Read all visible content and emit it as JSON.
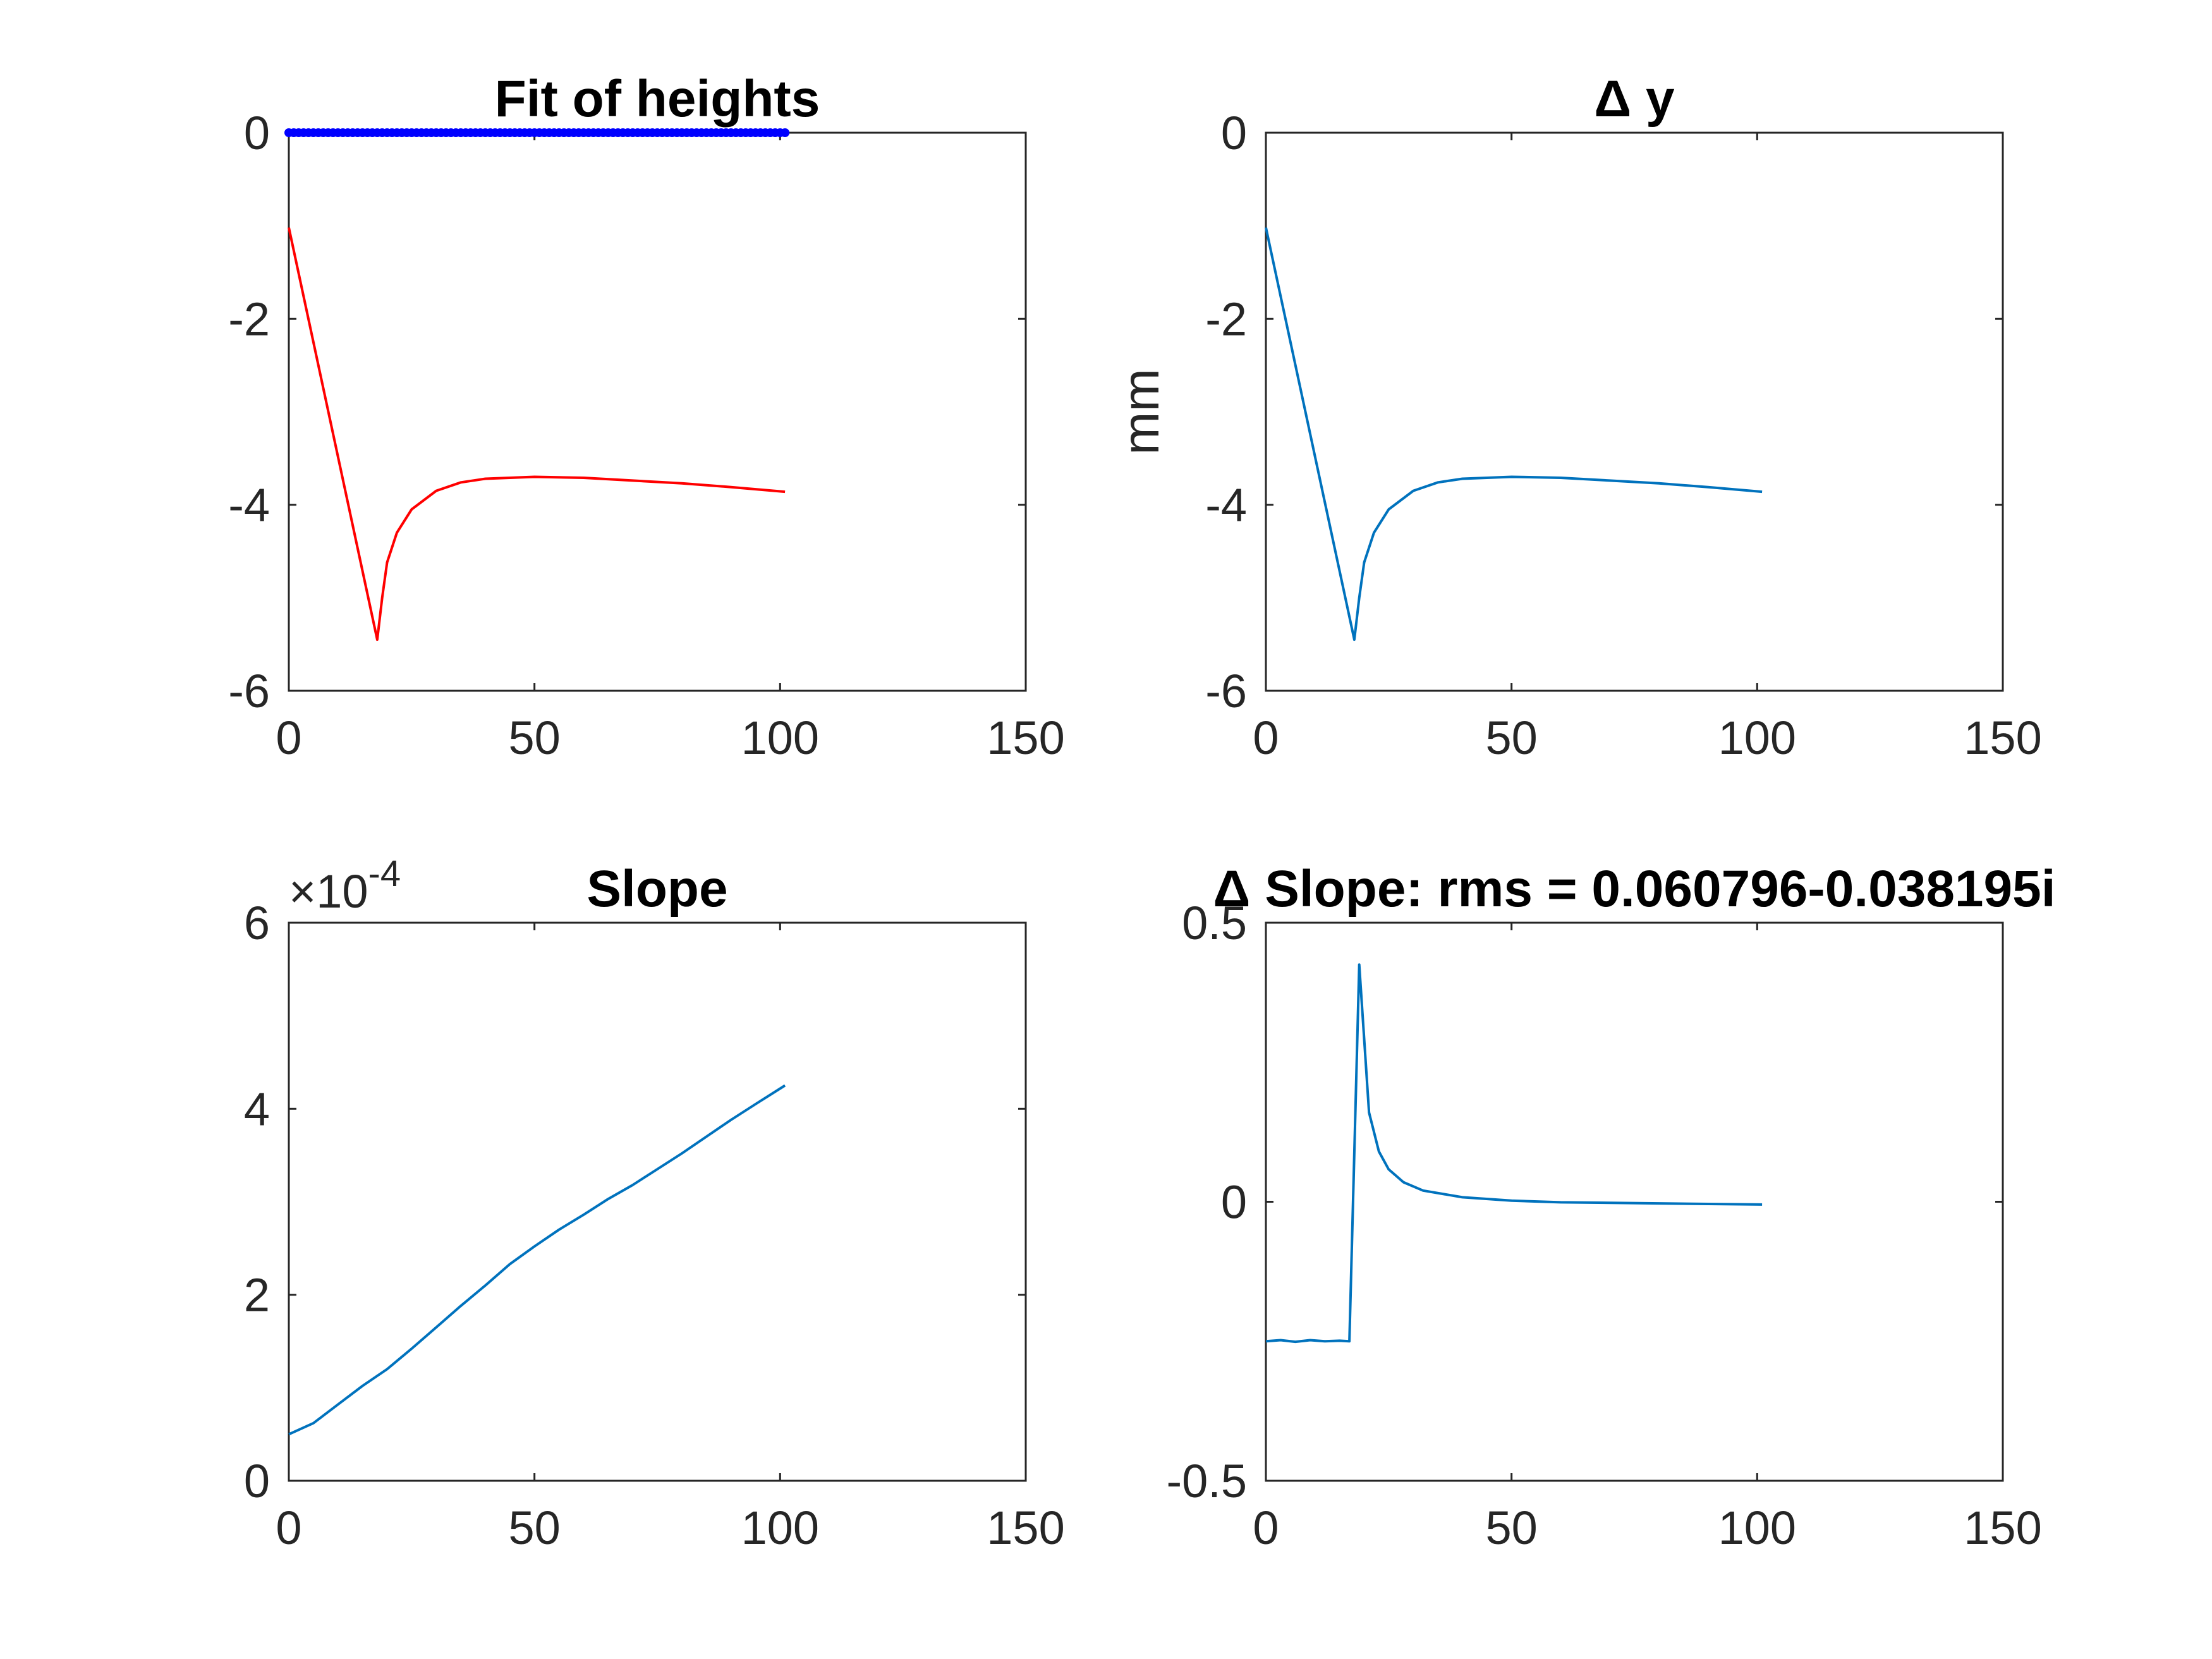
{
  "colors": {
    "background": "#ffffff",
    "axes": "#262626",
    "text": "#262626",
    "title": "#000000",
    "red_line": "#ff0000",
    "blue_markers": "#0000ff",
    "default_line": "#0072bd"
  },
  "chart_data": [
    {
      "type": "line",
      "title": "Fit of heights",
      "xlabel": "",
      "ylabel": "",
      "xlim": [
        0,
        150
      ],
      "ylim": [
        -6,
        0
      ],
      "xticks": [
        "0",
        "50",
        "100",
        "150"
      ],
      "yticks": [
        "-6",
        "-4",
        "-2",
        "0"
      ],
      "exponent": "",
      "grid": false,
      "series": [
        {
          "style": "markers",
          "color": "#0000ff",
          "x_start": 0,
          "x_end": 101,
          "x_step": 1,
          "y": [
            0
          ]
        },
        {
          "style": "line",
          "color": "#ff0000",
          "points": [
            [
              0,
              -1.02
            ],
            [
              18,
              -5.45
            ],
            [
              19,
              -5.0
            ],
            [
              20,
              -4.62
            ],
            [
              22,
              -4.3
            ],
            [
              25,
              -4.05
            ],
            [
              30,
              -3.85
            ],
            [
              35,
              -3.76
            ],
            [
              40,
              -3.72
            ],
            [
              50,
              -3.7
            ],
            [
              60,
              -3.71
            ],
            [
              70,
              -3.74
            ],
            [
              80,
              -3.77
            ],
            [
              90,
              -3.81
            ],
            [
              101,
              -3.86
            ]
          ]
        }
      ]
    },
    {
      "type": "line",
      "title": "Δ y",
      "xlabel": "",
      "ylabel": "mm",
      "xlim": [
        0,
        150
      ],
      "ylim": [
        -6,
        0
      ],
      "xticks": [
        "0",
        "50",
        "100",
        "150"
      ],
      "yticks": [
        "-6",
        "-4",
        "-2",
        "0"
      ],
      "exponent": "",
      "grid": false,
      "series": [
        {
          "style": "line",
          "color": "#0072bd",
          "points": [
            [
              0,
              -1.02
            ],
            [
              18,
              -5.45
            ],
            [
              19,
              -5.0
            ],
            [
              20,
              -4.62
            ],
            [
              22,
              -4.3
            ],
            [
              25,
              -4.05
            ],
            [
              30,
              -3.85
            ],
            [
              35,
              -3.76
            ],
            [
              40,
              -3.72
            ],
            [
              50,
              -3.7
            ],
            [
              60,
              -3.71
            ],
            [
              70,
              -3.74
            ],
            [
              80,
              -3.77
            ],
            [
              90,
              -3.81
            ],
            [
              101,
              -3.86
            ]
          ]
        }
      ]
    },
    {
      "type": "line",
      "title": "Slope",
      "xlabel": "",
      "ylabel": "",
      "xlim": [
        0,
        150
      ],
      "ylim": [
        0,
        6
      ],
      "xticks": [
        "0",
        "50",
        "100",
        "150"
      ],
      "yticks": [
        "0",
        "2",
        "4",
        "6"
      ],
      "exponent": "×10-4",
      "exponent_base": "×10",
      "exponent_power": "-4",
      "grid": false,
      "series": [
        {
          "style": "line",
          "color": "#0072bd",
          "points": [
            [
              0,
              0.5
            ],
            [
              5,
              0.62
            ],
            [
              10,
              0.82
            ],
            [
              15,
              1.02
            ],
            [
              20,
              1.2
            ],
            [
              25,
              1.42
            ],
            [
              30,
              1.65
            ],
            [
              35,
              1.88
            ],
            [
              40,
              2.1
            ],
            [
              45,
              2.33
            ],
            [
              50,
              2.52
            ],
            [
              55,
              2.7
            ],
            [
              60,
              2.86
            ],
            [
              65,
              3.03
            ],
            [
              70,
              3.18
            ],
            [
              75,
              3.35
            ],
            [
              80,
              3.52
            ],
            [
              85,
              3.7
            ],
            [
              90,
              3.88
            ],
            [
              95,
              4.05
            ],
            [
              101,
              4.25
            ]
          ]
        }
      ]
    },
    {
      "type": "line",
      "title": "Δ Slope: rms = 0.060796-0.038195i",
      "xlabel": "",
      "ylabel": "",
      "xlim": [
        0,
        150
      ],
      "ylim": [
        -0.5,
        0.5
      ],
      "xticks": [
        "0",
        "50",
        "100",
        "150"
      ],
      "yticks": [
        "-0.5",
        "0",
        "0.5"
      ],
      "exponent": "",
      "grid": false,
      "series": [
        {
          "style": "line",
          "color": "#0072bd",
          "points": [
            [
              0,
              -0.25
            ],
            [
              3,
              -0.248
            ],
            [
              6,
              -0.251
            ],
            [
              9,
              -0.248
            ],
            [
              12,
              -0.25
            ],
            [
              15,
              -0.249
            ],
            [
              17,
              -0.25
            ],
            [
              19,
              0.425
            ],
            [
              21,
              0.16
            ],
            [
              23,
              0.09
            ],
            [
              25,
              0.058
            ],
            [
              28,
              0.035
            ],
            [
              32,
              0.02
            ],
            [
              40,
              0.008
            ],
            [
              50,
              0.002
            ],
            [
              60,
              -0.001
            ],
            [
              80,
              -0.003
            ],
            [
              101,
              -0.005
            ]
          ]
        }
      ]
    }
  ]
}
